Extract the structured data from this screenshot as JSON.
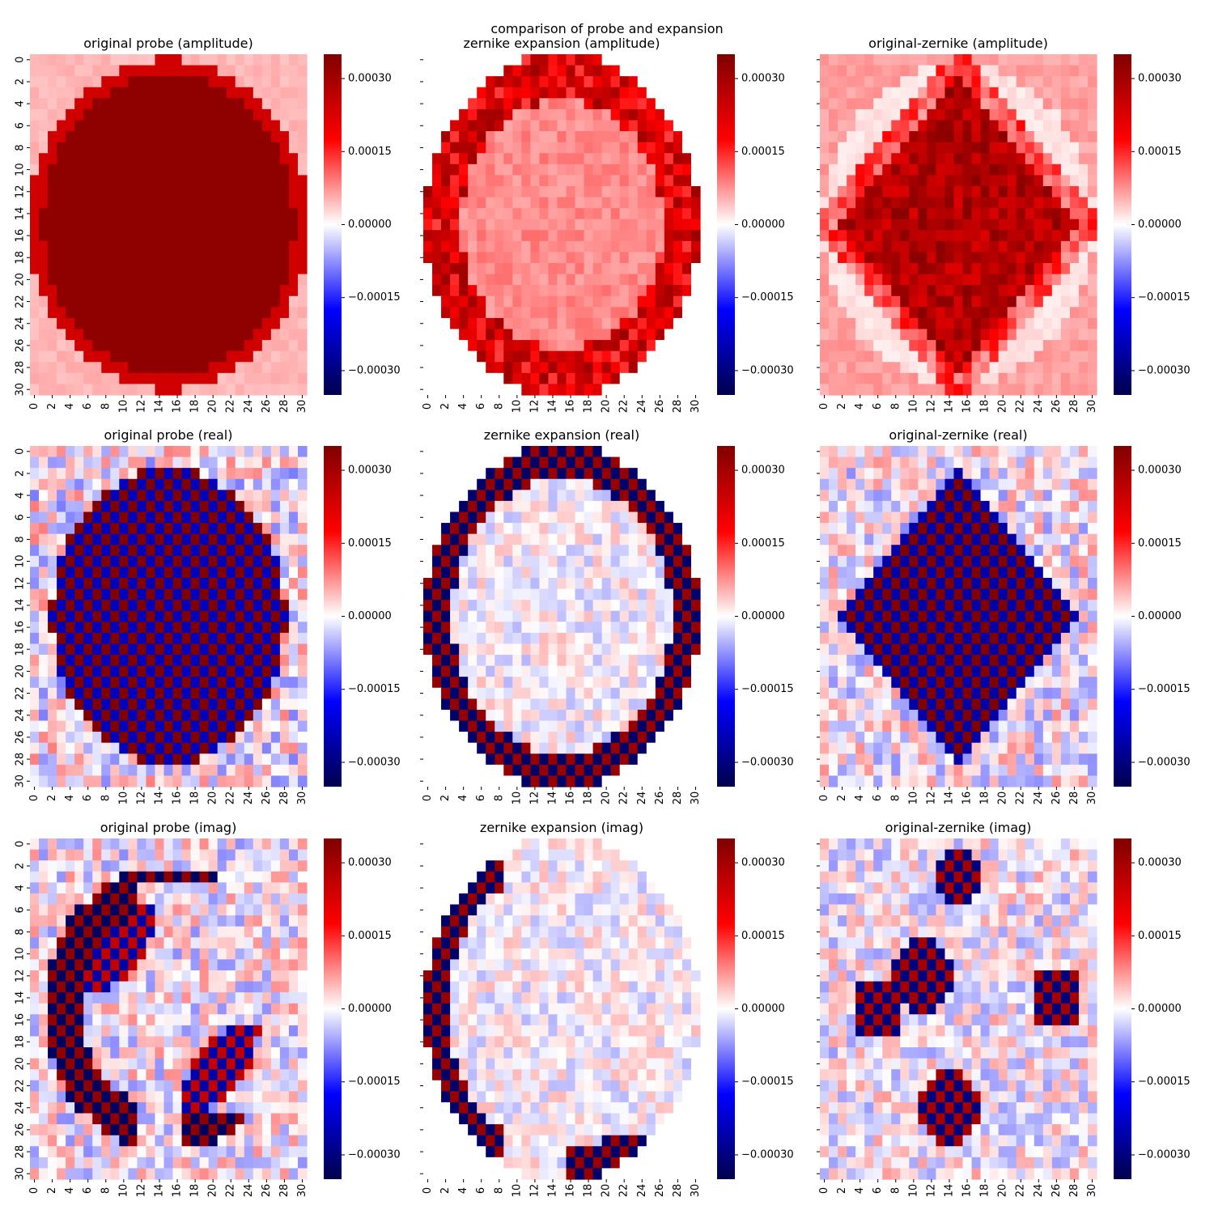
{
  "figure": {
    "suptitle": "comparison of probe and expansion"
  },
  "colormap": {
    "name": "seismic",
    "stops": [
      "#00004c",
      "#0000ff",
      "#ffffff",
      "#ff0000",
      "#800000"
    ]
  },
  "chart_data": {
    "type": "heatmap",
    "grid_size": 31,
    "vmin": -0.00035,
    "vmax": 0.00035,
    "x_ticks": [
      0,
      2,
      4,
      6,
      8,
      10,
      12,
      14,
      16,
      18,
      20,
      22,
      24,
      26,
      28,
      30
    ],
    "y_ticks": [
      0,
      2,
      4,
      6,
      8,
      10,
      12,
      14,
      16,
      18,
      20,
      22,
      24,
      26,
      28,
      30
    ],
    "colorbar_ticks": [
      "0.00030",
      "0.00015",
      "0.00000",
      "−0.00015",
      "−0.00030"
    ],
    "colorbar_tick_values": [
      0.0003,
      0.00015,
      0.0,
      -0.00015,
      -0.0003
    ],
    "panels": [
      {
        "title": "original probe (amplitude)",
        "x_ticks_visible": true,
        "y_ticks_visible": true,
        "pattern": "orig_amp"
      },
      {
        "title": "zernike expansion (amplitude)",
        "x_ticks_visible": true,
        "y_ticks_visible": false,
        "pattern": "zern_amp"
      },
      {
        "title": "original-zernike (amplitude)",
        "x_ticks_visible": true,
        "y_ticks_visible": false,
        "pattern": "diff_amp"
      },
      {
        "title": "original probe (real)",
        "x_ticks_visible": true,
        "y_ticks_visible": true,
        "pattern": "orig_real"
      },
      {
        "title": "zernike expansion (real)",
        "x_ticks_visible": true,
        "y_ticks_visible": false,
        "pattern": "zern_real"
      },
      {
        "title": "original-zernike (real)",
        "x_ticks_visible": true,
        "y_ticks_visible": false,
        "pattern": "diff_real"
      },
      {
        "title": "original probe (imag)",
        "x_ticks_visible": true,
        "y_ticks_visible": true,
        "pattern": "orig_imag"
      },
      {
        "title": "zernike expansion (imag)",
        "x_ticks_visible": true,
        "y_ticks_visible": false,
        "pattern": "zern_imag"
      },
      {
        "title": "original-zernike (imag)",
        "x_ticks_visible": true,
        "y_ticks_visible": false,
        "pattern": "diff_imag"
      }
    ]
  }
}
